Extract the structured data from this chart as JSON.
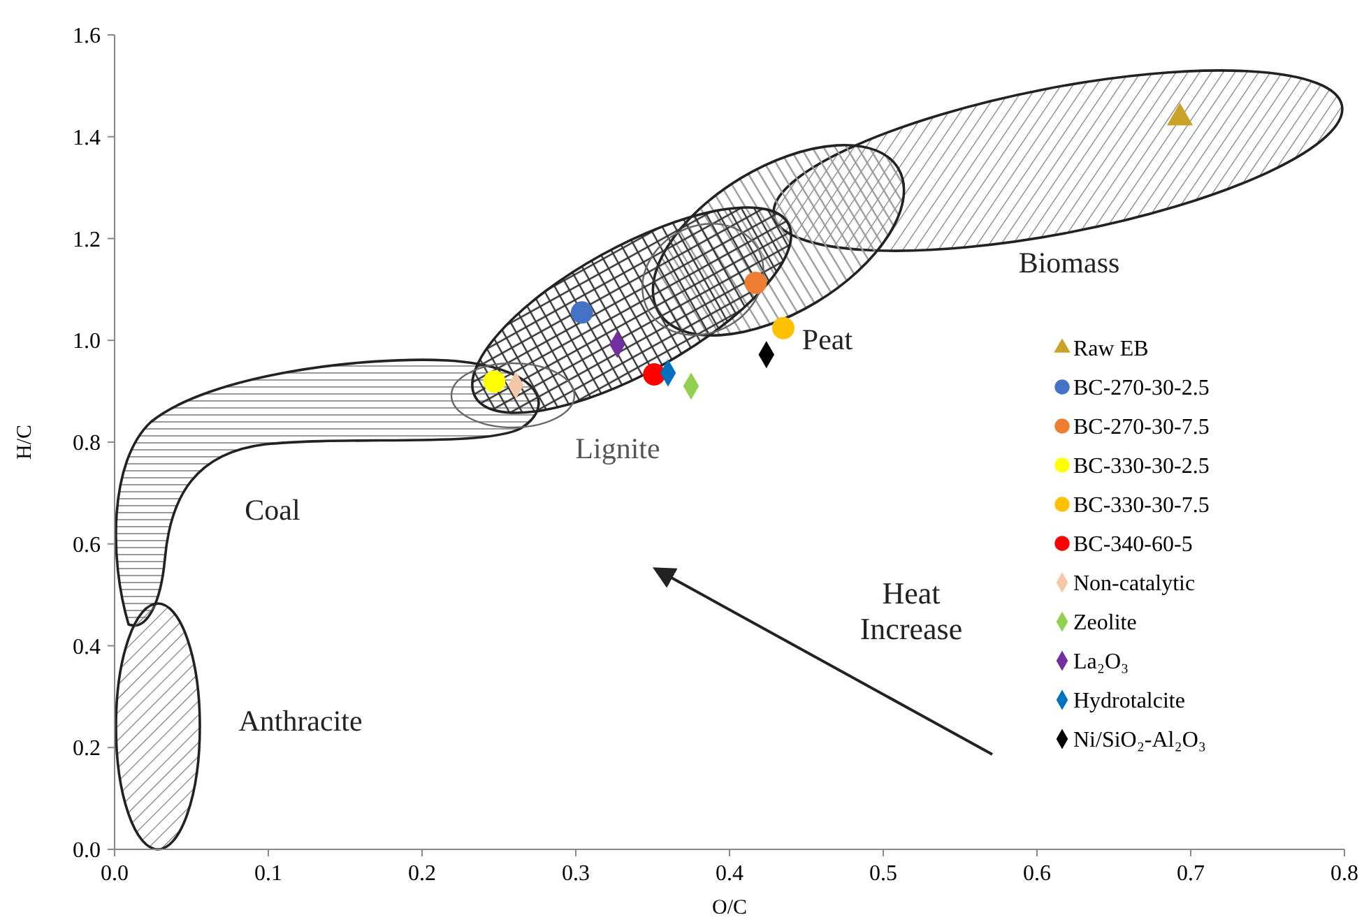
{
  "chart_data": {
    "type": "scatter",
    "xlabel": "O/C",
    "ylabel": "H/C",
    "xlim": [
      0,
      0.8
    ],
    "ylim": [
      0,
      1.6
    ],
    "xticks": [
      {
        "value": 0,
        "label": "0.0"
      },
      0.1,
      0.2,
      0.3,
      0.4,
      0.5,
      0.6,
      0.7,
      0.8
    ],
    "yticks": [
      {
        "value": 0,
        "label": "0.0"
      },
      0.2,
      0.4,
      0.6,
      0.8,
      {
        "value": 1,
        "label": "1.0"
      },
      1.2,
      1.4,
      1.6
    ],
    "legend": "right",
    "annotations": [
      "Coal",
      "Anthracite",
      "Lignite",
      "Peat",
      "Biomass",
      "Heat Increase"
    ],
    "series": [
      {
        "name": "Raw EB",
        "color": "#c9a227",
        "marker": "triangle",
        "x": [
          0.693
        ],
        "values": [
          1.437
        ]
      },
      {
        "name": "BC-270-30-2.5",
        "color": "#4472c4",
        "marker": "circle",
        "x": [
          0.304
        ],
        "values": [
          1.055
        ]
      },
      {
        "name": "BC-270-30-7.5",
        "color": "#ed7d31",
        "marker": "circle",
        "x": [
          0.417
        ],
        "values": [
          1.113
        ]
      },
      {
        "name": "BC-330-30-2.5",
        "color": "#ffff00",
        "marker": "circle",
        "x": [
          0.247
        ],
        "values": [
          0.919
        ]
      },
      {
        "name": "BC-330-30-7.5",
        "color": "#ffc000",
        "marker": "circle",
        "x": [
          0.435
        ],
        "values": [
          1.024
        ]
      },
      {
        "name": "BC-340-60-5",
        "color": "#ff0000",
        "marker": "circle",
        "x": [
          0.351
        ],
        "values": [
          0.933
        ]
      },
      {
        "name": "Non-catalytic",
        "color": "#f4c7a8",
        "marker": "diamond",
        "x": [
          0.261
        ],
        "values": [
          0.912
        ]
      },
      {
        "name": "Zeolite",
        "color": "#92d050",
        "marker": "diamond",
        "x": [
          0.375
        ],
        "values": [
          0.91
        ]
      },
      {
        "name": "La₂O₃",
        "color": "#7030a0",
        "marker": "diamond",
        "x": [
          0.327
        ],
        "values": [
          0.992
        ]
      },
      {
        "name": "Hydrotalcite",
        "color": "#0070c0",
        "marker": "diamond",
        "x": [
          0.36
        ],
        "values": [
          0.936
        ]
      },
      {
        "name": "Ni/SiO₂-Al₂O₃",
        "color": "#000000",
        "marker": "diamond",
        "x": [
          0.424
        ],
        "values": [
          0.972
        ]
      }
    ]
  }
}
